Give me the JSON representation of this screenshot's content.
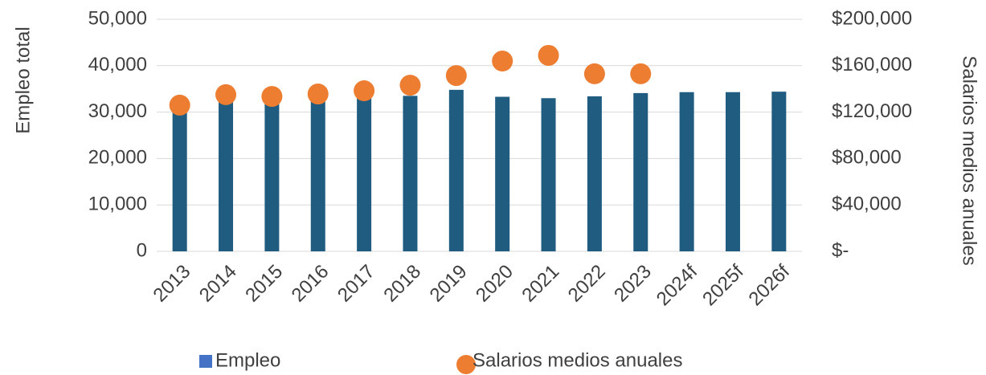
{
  "chart_data": {
    "type": "bar_scatter",
    "categories": [
      "2013",
      "2014",
      "2015",
      "2016",
      "2017",
      "2018",
      "2019",
      "2020",
      "2021",
      "2022",
      "2023",
      "2024f",
      "2025f",
      "2026f"
    ],
    "series": [
      {
        "name": "Empleo",
        "type": "bar",
        "color": "#1f5c80",
        "legend_color": "#4472c4",
        "values": [
          30000,
          32500,
          32300,
          32600,
          33200,
          33500,
          34800,
          33300,
          33000,
          33400,
          34100,
          34300,
          34300,
          34400
        ]
      },
      {
        "name": "Salarios medios anuales",
        "type": "scatter",
        "axis": "y2",
        "color": "#ed7d31",
        "values": [
          126000,
          135000,
          133500,
          135600,
          138400,
          143200,
          151500,
          164000,
          168900,
          153000,
          153000,
          null,
          null,
          null
        ]
      }
    ],
    "ylabel": "Empleo total",
    "y2label": "Salarios medios anuales",
    "ylim": [
      0,
      50000
    ],
    "yticks": [
      {
        "value": 0,
        "label": "0"
      },
      {
        "value": 10000,
        "label": "10,000"
      },
      {
        "value": 20000,
        "label": "20,000"
      },
      {
        "value": 30000,
        "label": "30,000"
      },
      {
        "value": 40000,
        "label": "40,000"
      },
      {
        "value": 50000,
        "label": "50,000"
      }
    ],
    "y2lim": [
      0,
      200000
    ],
    "y2ticks": [
      {
        "value": 0,
        "label": "$-"
      },
      {
        "value": 40000,
        "label": "$40,000"
      },
      {
        "value": 80000,
        "label": "$80,000"
      },
      {
        "value": 120000,
        "label": "$120,000"
      },
      {
        "value": 160000,
        "label": "$160,000"
      },
      {
        "value": 200000,
        "label": "$200,000"
      }
    ],
    "grid": true,
    "legend": "bottom"
  }
}
